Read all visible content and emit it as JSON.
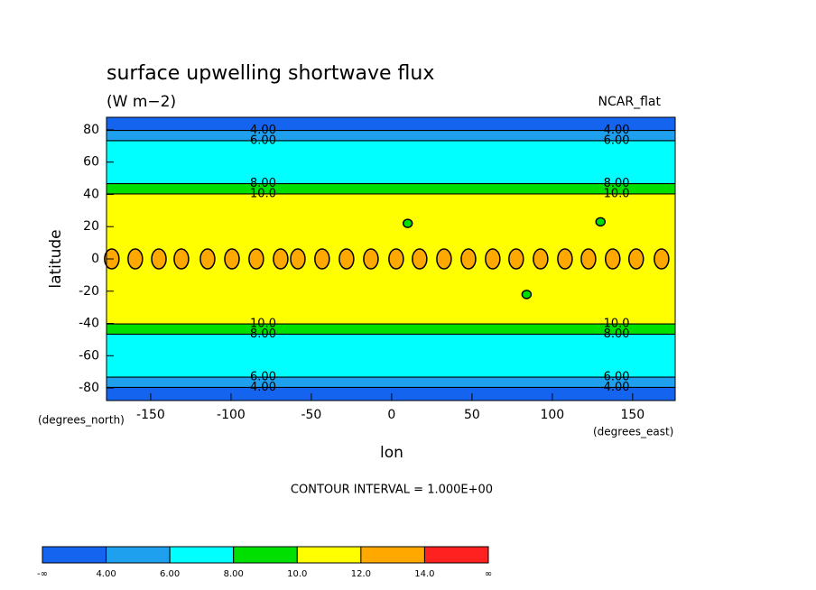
{
  "chart_data": {
    "type": "contour",
    "title": "surface upwelling shortwave flux",
    "subtitle": "(W m−2)",
    "dataset": "NCAR_flat",
    "x_label": "lon",
    "y_label": "latitude",
    "y_units": "(degrees_north)",
    "x_units": "(degrees_east)",
    "footnote": "CONTOUR INTERVAL = 1.000E+00",
    "xlim": [
      -177.5,
      176.5
    ],
    "ylim": [
      -87.8,
      87.8
    ],
    "xticks": [
      -150,
      -100,
      -50,
      0,
      50,
      100,
      150
    ],
    "yticks": [
      -80,
      -60,
      -40,
      -20,
      0,
      20,
      40,
      60,
      80
    ],
    "profile": {
      "lat": [
        -87.8,
        -80,
        -77,
        -73,
        -50,
        -46,
        -40,
        -25,
        0,
        25,
        40,
        46,
        50,
        73,
        77,
        80,
        87.8
      ],
      "values": [
        3,
        3.9,
        4.8,
        6.1,
        7.5,
        8.1,
        10.1,
        11,
        11.6,
        11,
        10.1,
        8.1,
        7.5,
        6.1,
        4.8,
        3.9,
        3
      ]
    },
    "spots": {
      "x": [
        -174.2,
        -159.6,
        -144.9,
        -130.9,
        -114.6,
        -99.4,
        -84.3,
        -69.1,
        -58.4,
        -43.3,
        -28.1,
        -12.9,
        2.8,
        17.4,
        32.6,
        47.8,
        62.9,
        77.5,
        92.7,
        107.9,
        122.5,
        137.6,
        152.2,
        168,
        10,
        84,
        130
      ],
      "y": [
        0,
        0,
        0,
        0,
        0,
        0,
        0,
        0,
        0,
        0,
        0,
        0,
        0,
        0,
        0,
        0,
        0,
        0,
        0,
        0,
        0,
        0,
        0,
        0,
        22,
        -22,
        23
      ],
      "values": [
        12.2,
        12.2,
        12.2,
        12.2,
        12.2,
        12.2,
        12.2,
        12.2,
        12.2,
        12.2,
        12.2,
        12.2,
        12.2,
        12.2,
        12.2,
        12.2,
        12.2,
        12.2,
        12.2,
        12.2,
        12.2,
        12.2,
        12.2,
        12.2,
        9.5,
        9.5,
        9.5
      ]
    },
    "contour_label_x": [
      -80,
      140
    ],
    "levels": [
      {
        "value": 4,
        "label": "4.00"
      },
      {
        "value": 6,
        "label": "6.00"
      },
      {
        "value": 8,
        "label": "8.00"
      },
      {
        "value": 10,
        "label": "10.0"
      },
      {
        "value": 12,
        "label": "12.0"
      },
      {
        "value": 14,
        "label": "14.0"
      }
    ],
    "colorbar_ends": [
      "-∞",
      "∞"
    ],
    "colors": [
      "#1464f0",
      "#1ea0ef",
      "#00ffff",
      "#00e000",
      "#ffff00",
      "#ffa800",
      "#ff2020"
    ]
  }
}
